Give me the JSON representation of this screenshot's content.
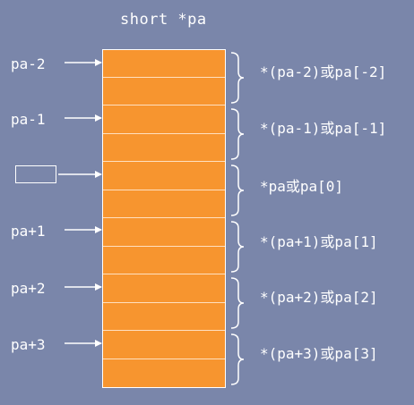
{
  "title": "short *pa",
  "pointers": [
    {
      "label": "pa-2",
      "expression": "*(pa-2)或pa[-2]"
    },
    {
      "label": "pa-1",
      "expression": "*(pa-1)或pa[-1]"
    },
    {
      "label": "",
      "expression": "*pa或pa[0]"
    },
    {
      "label": "pa+1",
      "expression": "*(pa+1)或pa[1]"
    },
    {
      "label": "pa+2",
      "expression": "*(pa+2)或pa[2]"
    },
    {
      "label": "pa+3",
      "expression": "*(pa+3)或pa[3]"
    }
  ],
  "colors": {
    "background": "#7a86aa",
    "memory_fill": "#f7952f",
    "line": "#ffffff"
  }
}
